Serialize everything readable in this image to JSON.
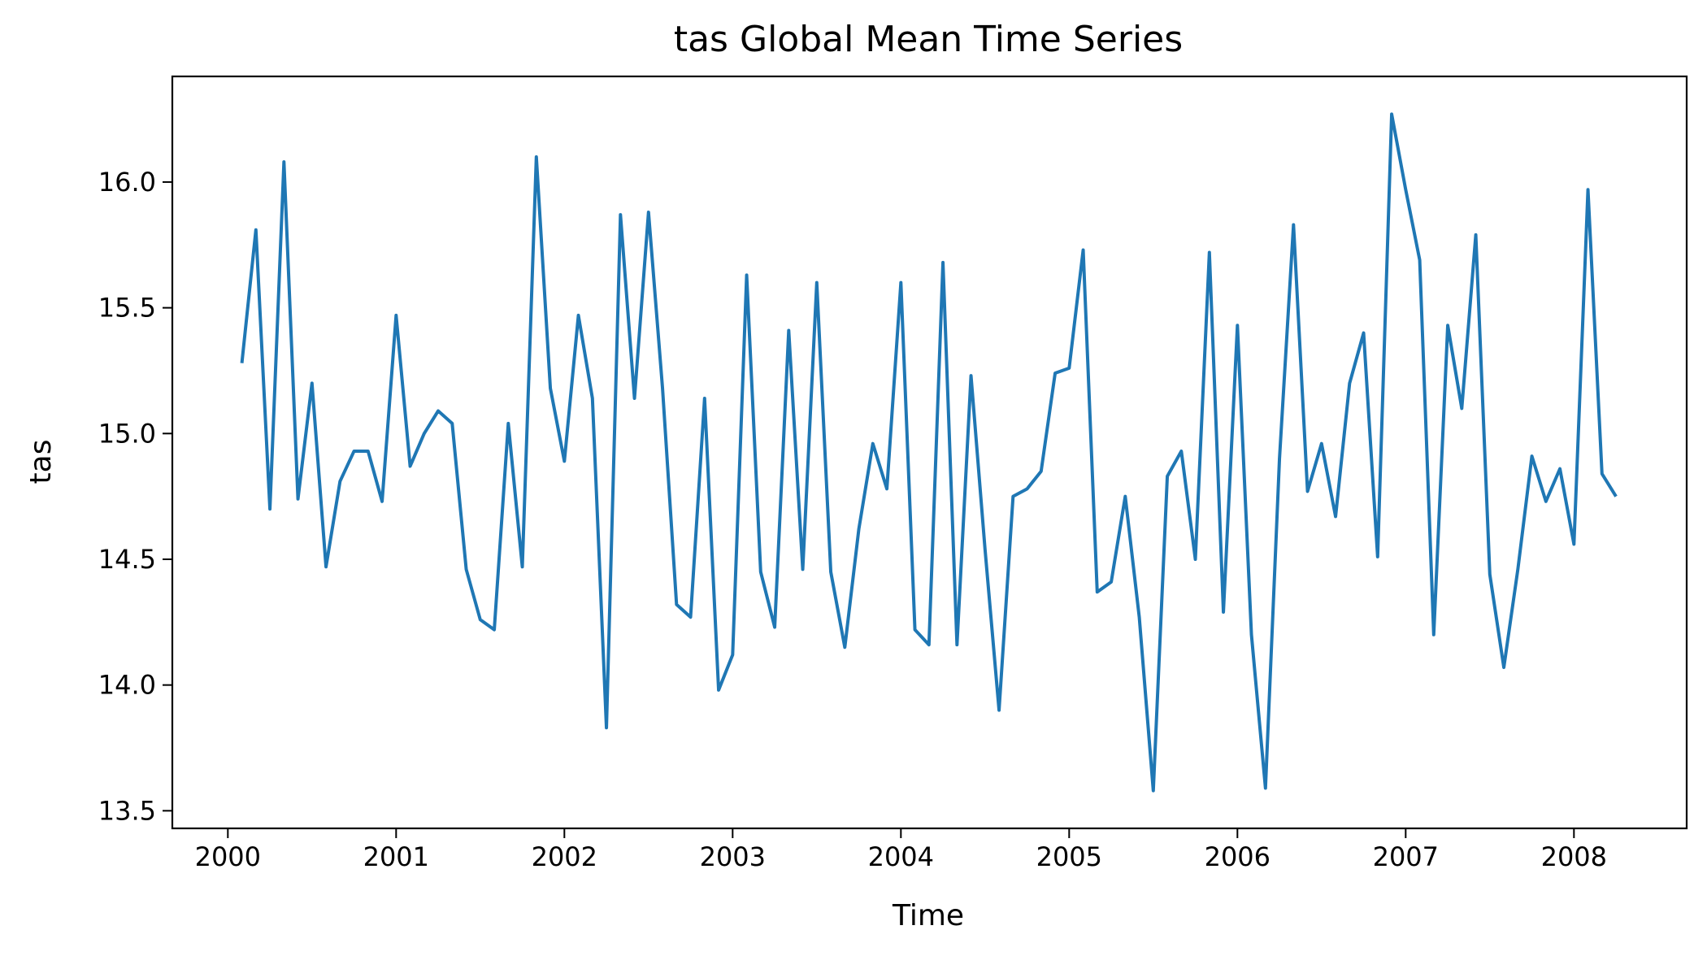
{
  "chart_data": {
    "type": "line",
    "title": "tas Global Mean Time Series",
    "xlabel": "Time",
    "ylabel": "tas",
    "x_start": "2000-02",
    "x_ticks": [
      "2000",
      "2001",
      "2002",
      "2003",
      "2004",
      "2005",
      "2006",
      "2007",
      "2008"
    ],
    "y_ticks": [
      "13.5",
      "14.0",
      "14.5",
      "15.0",
      "15.5",
      "16.0"
    ],
    "xlim": [
      1999.67,
      2008.67
    ],
    "ylim": [
      13.43,
      16.42
    ],
    "grid": false,
    "legend": "none",
    "series": [
      {
        "color": "#1f77b4",
        "values": [
          15.28,
          15.81,
          14.7,
          16.08,
          14.74,
          15.2,
          14.47,
          14.81,
          14.93,
          14.93,
          14.73,
          15.47,
          14.87,
          15.0,
          15.09,
          15.04,
          14.46,
          14.26,
          14.22,
          15.04,
          14.47,
          16.1,
          15.18,
          14.89,
          15.47,
          15.14,
          13.83,
          15.87,
          15.14,
          15.88,
          15.18,
          14.32,
          14.27,
          15.14,
          13.98,
          14.12,
          15.63,
          14.45,
          14.23,
          15.41,
          14.46,
          15.6,
          14.45,
          14.15,
          14.62,
          14.96,
          14.78,
          15.6,
          14.22,
          14.16,
          15.68,
          14.16,
          15.23,
          14.54,
          13.9,
          14.75,
          14.78,
          14.85,
          15.24,
          15.26,
          15.73,
          14.37,
          14.41,
          14.75,
          14.27,
          13.58,
          14.83,
          14.93,
          14.5,
          15.72,
          14.29,
          15.43,
          14.2,
          13.59,
          14.9,
          15.83,
          14.77,
          14.96,
          14.67,
          15.2,
          15.4,
          14.51,
          16.27,
          15.97,
          15.69,
          14.2,
          15.43,
          15.1,
          15.79,
          14.44,
          14.07,
          14.46,
          14.91,
          14.73,
          14.86,
          14.56,
          15.97,
          14.84,
          14.75
        ]
      }
    ]
  }
}
